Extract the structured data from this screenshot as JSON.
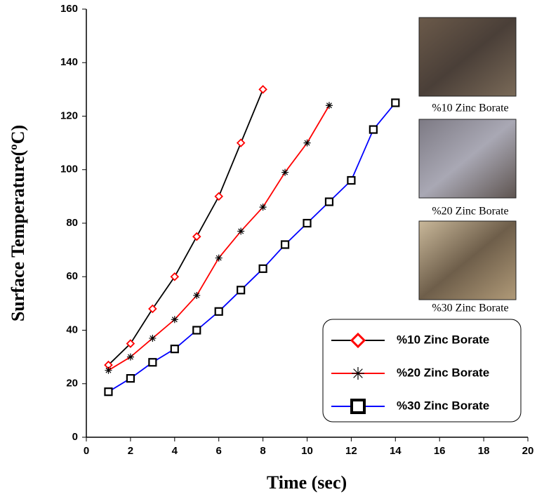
{
  "chart_data": {
    "type": "line",
    "x_label": "Time (sec)",
    "y_label": "Surface Temperature(ºC)",
    "xlim": [
      0,
      20
    ],
    "xticks": [
      0,
      2,
      4,
      6,
      8,
      10,
      12,
      14,
      16,
      18,
      20
    ],
    "ylim": [
      0,
      160
    ],
    "yticks": [
      0,
      20,
      40,
      60,
      80,
      100,
      120,
      140,
      160
    ],
    "legend": "lower right",
    "image_captions": [
      "%10 Zinc Borate",
      "%20 Zinc Borate",
      "%30 Zinc Borate"
    ],
    "series": [
      {
        "name": "%10 Zinc Borate",
        "color": "#000000",
        "marker": "diamond",
        "marker_color": "#ff0000",
        "x": [
          1,
          2,
          3,
          4,
          5,
          6,
          7,
          8
        ],
        "values": [
          27,
          35,
          48,
          60,
          75,
          90,
          110,
          130
        ]
      },
      {
        "name": "%20 Zinc Borate",
        "color": "#ff0000",
        "marker": "star",
        "marker_color": "#000000",
        "x": [
          1,
          2,
          3,
          4,
          5,
          6,
          7,
          8,
          9,
          10,
          11
        ],
        "values": [
          25,
          30,
          37,
          44,
          53,
          67,
          77,
          86,
          99,
          110,
          124
        ]
      },
      {
        "name": "%30 Zinc Borate",
        "color": "#0000ff",
        "marker": "square",
        "marker_color": "#000000",
        "x": [
          1,
          2,
          3,
          4,
          5,
          6,
          7,
          8,
          9,
          10,
          11,
          12,
          13,
          14
        ],
        "values": [
          17,
          22,
          28,
          33,
          40,
          47,
          55,
          63,
          72,
          80,
          88,
          96,
          115,
          125
        ]
      }
    ]
  }
}
